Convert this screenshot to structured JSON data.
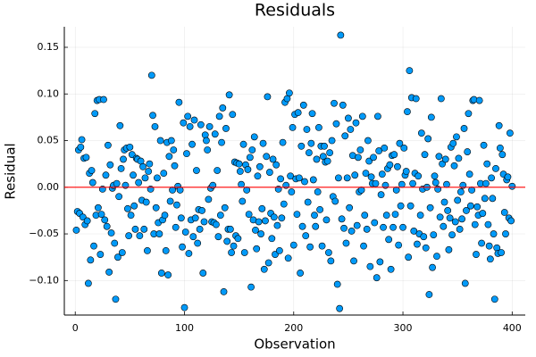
{
  "chart_data": {
    "type": "scatter",
    "title": "Residuals",
    "x_label": "Observation",
    "y_label": "Residual",
    "xlim": [
      -10,
      412
    ],
    "ylim": [
      -0.137,
      0.172
    ],
    "xticks": [
      0,
      100,
      200,
      300,
      400
    ],
    "yticks": [
      {
        "value": -0.1,
        "label": "−0.10"
      },
      {
        "value": -0.05,
        "label": "−0.05"
      },
      {
        "value": 0,
        "label": "0.00"
      },
      {
        "value": 0.05,
        "label": "0.05"
      },
      {
        "value": 0.1,
        "label": "0.10"
      },
      {
        "value": 0.15,
        "label": "0.15"
      }
    ],
    "grid": true,
    "hline": {
      "value": 0,
      "color": "#ff0000"
    },
    "series": [
      {
        "color": "#009af9",
        "x": [
          1,
          2,
          3,
          4,
          5,
          6,
          7,
          8,
          9,
          10,
          11,
          12,
          13,
          14,
          15,
          16,
          17,
          18,
          19,
          20,
          21,
          22,
          23,
          24,
          25,
          26,
          27,
          28,
          29,
          30,
          31,
          32,
          33,
          34,
          35,
          36,
          37,
          38,
          39,
          40,
          41,
          42,
          43,
          44,
          45,
          46,
          47,
          48,
          49,
          50,
          51,
          52,
          53,
          54,
          55,
          56,
          57,
          58,
          59,
          60,
          61,
          62,
          63,
          64,
          65,
          66,
          67,
          68,
          69,
          70,
          71,
          72,
          73,
          74,
          75,
          76,
          77,
          78,
          79,
          80,
          81,
          82,
          83,
          84,
          85,
          86,
          87,
          88,
          89,
          90,
          91,
          92,
          93,
          94,
          95,
          96,
          97,
          98,
          99,
          100,
          101,
          102,
          103,
          104,
          105,
          106,
          107,
          108,
          109,
          110,
          111,
          112,
          113,
          114,
          115,
          116,
          117,
          118,
          119,
          120,
          121,
          122,
          123,
          124,
          125,
          126,
          127,
          128,
          129,
          130,
          131,
          132,
          133,
          134,
          135,
          136,
          137,
          138,
          139,
          140,
          141,
          142,
          143,
          144,
          145,
          146,
          147,
          148,
          149,
          150,
          151,
          152,
          153,
          154,
          155,
          156,
          157,
          158,
          159,
          160,
          161,
          162,
          163,
          164,
          165,
          166,
          167,
          168,
          169,
          170,
          171,
          172,
          173,
          174,
          175,
          176,
          177,
          178,
          179,
          180,
          181,
          182,
          183,
          184,
          185,
          186,
          187,
          188,
          189,
          190,
          191,
          192,
          193,
          194,
          195,
          196,
          197,
          198,
          199,
          200,
          201,
          202,
          203,
          204,
          205,
          206,
          207,
          208,
          209,
          210,
          211,
          212,
          213,
          214,
          215,
          216,
          217,
          218,
          219,
          220,
          221,
          222,
          223,
          224,
          225,
          226,
          227,
          228,
          229,
          230,
          231,
          232,
          233,
          234,
          235,
          236,
          237,
          238,
          239,
          240,
          241,
          242,
          243,
          244,
          245,
          246,
          247,
          248,
          249,
          250,
          251,
          252,
          253,
          254,
          255,
          256,
          257,
          258,
          259,
          260,
          261,
          262,
          263,
          264,
          265,
          266,
          267,
          268,
          269,
          270,
          271,
          272,
          273,
          274,
          275,
          276,
          277,
          278,
          279,
          280,
          281,
          282,
          283,
          284,
          285,
          286,
          287,
          288,
          289,
          290,
          291,
          292,
          293,
          294,
          295,
          296,
          297,
          298,
          299,
          300,
          301,
          302,
          303,
          304,
          305,
          306,
          307,
          308,
          309,
          310,
          311,
          312,
          313,
          314,
          315,
          316,
          317,
          318,
          319,
          320,
          321,
          322,
          323,
          324,
          325,
          326,
          327,
          328,
          329,
          330,
          331,
          332,
          333,
          334,
          335,
          336,
          337,
          338,
          339,
          340,
          341,
          342,
          343,
          344,
          345,
          346,
          347,
          348,
          349,
          350,
          351,
          352,
          353,
          354,
          355,
          356,
          357,
          358,
          359,
          360,
          361,
          362,
          363,
          364,
          365,
          366,
          367,
          368,
          369,
          370,
          371,
          372,
          373,
          374,
          375,
          376,
          377,
          378,
          379,
          380,
          381,
          382,
          383,
          384,
          385,
          386,
          387,
          388,
          389,
          390,
          391,
          392,
          393,
          394,
          395,
          396,
          397,
          398,
          399,
          400
        ],
        "values": [
          -0.046,
          -0.026,
          0.04,
          -0.028,
          0.043,
          0.051,
          -0.032,
          0.031,
          -0.04,
          0.032,
          -0.036,
          -0.103,
          0.015,
          -0.078,
          0.018,
          0.005,
          -0.063,
          0.079,
          -0.03,
          0.093,
          -0.022,
          0.094,
          -0.072,
          -0.029,
          -0.002,
          0.094,
          -0.035,
          0.013,
          -0.042,
          0.045,
          -0.091,
          0.024,
          -0.049,
          -0.001,
          0.002,
          -0.06,
          -0.12,
          0.004,
          -0.075,
          -0.01,
          0.066,
          0.02,
          -0.07,
          0.03,
          0.04,
          0.002,
          0.042,
          -0.023,
          -0.052,
          0.043,
          -0.03,
          0.035,
          0.013,
          -0.02,
          -0.045,
          0.031,
          0.03,
          0.005,
          -0.052,
          0.028,
          -0.014,
          0.022,
          -0.045,
          0.01,
          -0.016,
          -0.068,
          0.017,
          0.025,
          -0.002,
          0.12,
          0.077,
          -0.05,
          0.065,
          -0.022,
          0.01,
          -0.038,
          -0.05,
          0.05,
          -0.092,
          -0.035,
          0.015,
          -0.03,
          -0.068,
          0.048,
          -0.094,
          0.033,
          -0.015,
          0.05,
          -0.003,
          0.04,
          0.023,
          -0.043,
          -0.019,
          0.001,
          0.091,
          -0.003,
          -0.033,
          -0.064,
          0.069,
          -0.129,
          -0.048,
          0.036,
          0.076,
          -0.071,
          0.065,
          -0.035,
          0.046,
          -0.053,
          0.072,
          -0.033,
          0.018,
          -0.06,
          -0.024,
          -0.045,
          0.067,
          -0.025,
          -0.092,
          -0.037,
          0.056,
          0.05,
          0.04,
          -0.013,
          0.065,
          -0.001,
          -0.037,
          0.002,
          -0.038,
          0.057,
          -0.04,
          0.018,
          -0.053,
          0.076,
          -0.03,
          0.048,
          0.085,
          -0.112,
          -0.022,
          0.063,
          -0.058,
          -0.045,
          0.099,
          -0.045,
          -0.07,
          0.078,
          -0.063,
          0.027,
          -0.052,
          0.026,
          -0.055,
          0.025,
          0.017,
          0.003,
          -0.015,
          0.046,
          -0.07,
          0.024,
          -0.003,
          0.019,
          -0.029,
          0.032,
          -0.107,
          0.04,
          -0.035,
          0.054,
          -0.046,
          -0.066,
          0.012,
          -0.037,
          0.022,
          -0.05,
          -0.023,
          0.047,
          -0.088,
          -0.036,
          0.033,
          0.097,
          -0.081,
          0.016,
          -0.028,
          -0.055,
          0.03,
          -0.032,
          -0.072,
          0.024,
          -0.041,
          -0.002,
          -0.068,
          0.009,
          -0.033,
          0.048,
          -0.018,
          0.091,
          0.002,
          0.095,
          -0.076,
          0.101,
          0.012,
          -0.005,
          0.064,
          -0.062,
          0.078,
          0.009,
          -0.029,
          0.08,
          0.01,
          -0.092,
          0.044,
          -0.042,
          0.088,
          0.006,
          -0.052,
          0.062,
          -0.016,
          0.037,
          -0.064,
          0.047,
          0.079,
          0.008,
          -0.03,
          -0.042,
          0.03,
          -0.005,
          0.064,
          -0.024,
          0.044,
          -0.063,
          0.033,
          0.044,
          0.027,
          -0.035,
          0.028,
          -0.07,
          0.037,
          -0.079,
          0.05,
          -0.01,
          0.09,
          -0.015,
          0.068,
          -0.104,
          0.01,
          -0.13,
          0.163,
          -0.034,
          0.088,
          -0.044,
          0.055,
          -0.06,
          0.01,
          0.074,
          -0.022,
          0.062,
          -0.047,
          0.034,
          -0.079,
          0.013,
          0.069,
          -0.041,
          0.032,
          -0.005,
          0.04,
          -0.003,
          0.076,
          -0.063,
          -0.03,
          0.015,
          -0.045,
          0.05,
          0.028,
          -0.085,
          0.011,
          0.004,
          0.032,
          -0.038,
          0.004,
          -0.097,
          0.076,
          0.039,
          -0.08,
          -0.008,
          0.014,
          -0.043,
          0.042,
          0.002,
          -0.03,
          0.02,
          -0.056,
          0.024,
          -0.088,
          0.034,
          -0.043,
          0.035,
          -0.029,
          -0.003,
          0.022,
          -0.062,
          0.047,
          -0.02,
          0.003,
          -0.043,
          0.042,
          0.013,
          0.017,
          0.081,
          -0.075,
          0.125,
          -0.02,
          0.096,
          0.004,
          -0.047,
          0.015,
          0.095,
          -0.061,
          0.012,
          -0.05,
          -0.03,
          0.058,
          -0.002,
          -0.053,
          0.035,
          -0.065,
          0.0,
          0.052,
          -0.115,
          -0.022,
          0.075,
          -0.086,
          -0.051,
          0.012,
          0.005,
          -0.074,
          -0.002,
          0.033,
          -0.032,
          0.095,
          0.025,
          -0.042,
          -0.016,
          0.03,
          0.003,
          -0.025,
          -0.067,
          -0.033,
          0.043,
          -0.051,
          0.047,
          0.023,
          -0.037,
          0.054,
          -0.014,
          0.031,
          -0.045,
          -0.005,
          -0.034,
          0.002,
          0.063,
          -0.103,
          -0.025,
          0.038,
          0.079,
          0.014,
          -0.02,
          -0.003,
          0.093,
          0.094,
          -0.04,
          -0.072,
          -0.021,
          -0.03,
          0.093,
          0.004,
          -0.06,
          -0.028,
          0.045,
          -0.012,
          0.004,
          0.025,
          -0.04,
          -0.063,
          -0.077,
          0.01,
          -0.012,
          -0.05,
          -0.12,
          0.02,
          -0.065,
          -0.071,
          0.066,
          0.042,
          -0.07,
          0.035,
          0.014,
          -0.027,
          -0.05,
          0.008,
          0.011,
          -0.033,
          0.058,
          -0.036,
          0.001
        ]
      }
    ]
  }
}
